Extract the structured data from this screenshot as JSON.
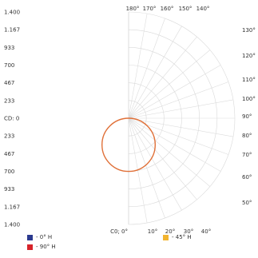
{
  "chart_data": {
    "type": "polar",
    "scale_labels": [
      "1.400",
      "1.167",
      "933",
      "700",
      "467",
      "233",
      "CD: 0",
      "233",
      "467",
      "700",
      "933",
      "1.167",
      "1.400"
    ],
    "scale_max": 1400,
    "top_angle_labels": [
      "180°",
      "170°",
      "160°",
      "150°",
      "140°"
    ],
    "right_angle_labels": [
      "130°",
      "120°",
      "110°",
      "100°",
      "90°",
      "80°",
      "70°",
      "60°",
      "50°"
    ],
    "bottom_angle_labels": [
      "0°",
      "10°",
      "20°",
      "30°",
      "40°"
    ],
    "bottom_prefix": "C0; ",
    "series": [
      {
        "name": "- 0° H",
        "color": "#2b3a8f",
        "values": []
      },
      {
        "name": "- 90° H",
        "color": "#d6232a",
        "values": []
      },
      {
        "name": "- 45° H",
        "color": "#f2b430",
        "values": []
      }
    ],
    "curve": {
      "color": "#e07038",
      "shape": "circle",
      "diameter_cd": 700,
      "center_cd": 350,
      "direction": "down"
    }
  }
}
